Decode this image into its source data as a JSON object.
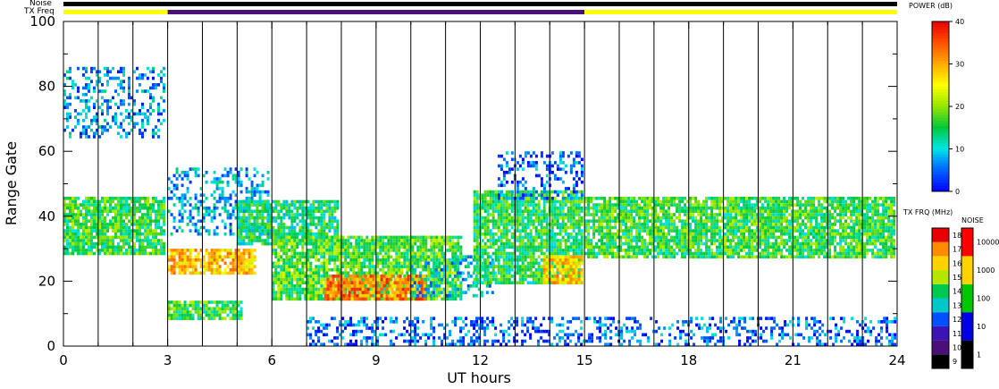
{
  "header": {
    "noise_label": "Noise",
    "txfreq_label": "TX Freq"
  },
  "chart_data": {
    "type": "heatmap",
    "xlabel": "UT hours",
    "ylabel": "Range Gate",
    "xlim": [
      0,
      24
    ],
    "ylim": [
      0,
      100
    ],
    "x_ticks": [
      "0",
      "3",
      "6",
      "9",
      "12",
      "15",
      "18",
      "21",
      "24"
    ],
    "y_ticks": [
      "0",
      "20",
      "40",
      "60",
      "80",
      "100"
    ],
    "grid": "vertical lines every hour",
    "noise_bar": {
      "color": "#000000",
      "range": [
        0,
        24
      ]
    },
    "tx_freq_bar": [
      {
        "from": 0,
        "to": 3,
        "color": "#ffff00"
      },
      {
        "from": 3,
        "to": 15,
        "color": "#4b0f78"
      },
      {
        "from": 15,
        "to": 24,
        "color": "#ffff00"
      }
    ],
    "regions": [
      {
        "x": [
          0,
          3
        ],
        "y": [
          28,
          46
        ],
        "power_db": 16
      },
      {
        "x": [
          0,
          3
        ],
        "y": [
          64,
          86
        ],
        "power_db": 7
      },
      {
        "x": [
          3,
          5.6
        ],
        "y": [
          21,
          30
        ],
        "power_db": 28
      },
      {
        "x": [
          3,
          5.2
        ],
        "y": [
          7,
          14
        ],
        "power_db": 16
      },
      {
        "x": [
          3,
          6
        ],
        "y": [
          33,
          55
        ],
        "power_db": 8
      },
      {
        "x": [
          5,
          8
        ],
        "y": [
          31,
          45
        ],
        "power_db": 14
      },
      {
        "x": [
          6,
          11.5
        ],
        "y": [
          14,
          34
        ],
        "power_db": 17
      },
      {
        "x": [
          7.5,
          10.5
        ],
        "y": [
          14,
          22
        ],
        "power_db": 32
      },
      {
        "x": [
          10,
          12.5
        ],
        "y": [
          14,
          28
        ],
        "power_db": 9
      },
      {
        "x": [
          11.8,
          15
        ],
        "y": [
          18,
          48
        ],
        "power_db": 15
      },
      {
        "x": [
          13.8,
          15
        ],
        "y": [
          18,
          28
        ],
        "power_db": 28
      },
      {
        "x": [
          12.5,
          15
        ],
        "y": [
          44,
          60
        ],
        "power_db": 5
      },
      {
        "x": [
          15,
          24
        ],
        "y": [
          27,
          46
        ],
        "power_db": 16
      },
      {
        "x": [
          7,
          24
        ],
        "y": [
          0,
          9
        ],
        "power_db": 5
      }
    ],
    "colorbars": [
      {
        "title": "POWER (dB)",
        "ticks": [
          "0",
          "10",
          "20",
          "30",
          "40"
        ],
        "range": [
          0,
          40
        ]
      },
      {
        "title": "TX FRQ (MHz)",
        "ticks": [
          "9",
          "10",
          "11",
          "12",
          "13",
          "14",
          "15",
          "16",
          "17",
          "18"
        ]
      },
      {
        "title": "NOISE",
        "ticks": [
          "1",
          "10",
          "100",
          "1000",
          "10000"
        ]
      }
    ]
  }
}
